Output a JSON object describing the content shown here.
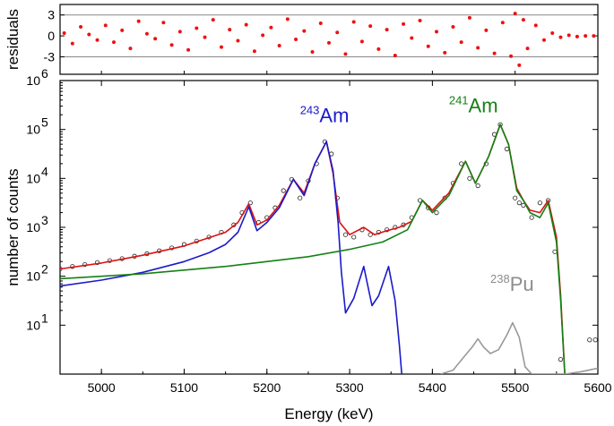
{
  "chart_data": [
    {
      "type": "scatter",
      "panel": "residuals",
      "ylabel": "residuals",
      "xlim": [
        4950,
        5600
      ],
      "ylim": [
        -5.5,
        4.5
      ],
      "yticks": [
        -3,
        0,
        3
      ],
      "ytick_labels": [
        "-3",
        "0",
        "3"
      ],
      "reference_lines": [
        -3,
        3
      ],
      "grid": false,
      "series": [
        {
          "marker_color": "#ee1111",
          "x": [
            4955,
            4965,
            4975,
            4985,
            4995,
            5005,
            5015,
            5025,
            5035,
            5045,
            5055,
            5065,
            5075,
            5085,
            5095,
            5105,
            5115,
            5125,
            5135,
            5145,
            5155,
            5165,
            5175,
            5185,
            5195,
            5205,
            5215,
            5225,
            5235,
            5245,
            5255,
            5265,
            5275,
            5285,
            5295,
            5305,
            5315,
            5325,
            5335,
            5345,
            5355,
            5365,
            5375,
            5385,
            5395,
            5405,
            5415,
            5425,
            5435,
            5445,
            5455,
            5465,
            5475,
            5485,
            5495,
            5500,
            5505,
            5510,
            5515,
            5525,
            5535,
            5545,
            5555,
            5565,
            5575,
            5585,
            5595
          ],
          "y": [
            0.4,
            -1.1,
            1.3,
            0.2,
            -0.6,
            1.5,
            -0.9,
            0.8,
            -1.8,
            2.1,
            0.3,
            -0.4,
            1.9,
            -1.3,
            0.6,
            -2.0,
            1.1,
            -0.2,
            2.3,
            -1.6,
            0.9,
            -0.7,
            1.6,
            -2.2,
            0.1,
            1.2,
            -1.4,
            2.4,
            -0.5,
            0.7,
            -2.3,
            1.8,
            -1.0,
            0.5,
            -2.6,
            2.0,
            -0.8,
            1.4,
            -1.9,
            0.9,
            -2.8,
            1.7,
            -0.3,
            2.2,
            -1.5,
            0.6,
            -2.4,
            1.3,
            -0.9,
            2.6,
            -1.7,
            0.8,
            -2.5,
            1.9,
            -2.9,
            3.2,
            -4.2,
            2.3,
            -1.8,
            1.5,
            -0.6,
            0.4,
            -0.2,
            0.1,
            -0.1,
            0.0,
            0.0
          ]
        }
      ]
    },
    {
      "type": "line",
      "panel": "spectrum",
      "xlabel": "Energy (keV)",
      "ylabel": "number of counts",
      "xlim": [
        4950,
        5600
      ],
      "ylim_log10": [
        0,
        6
      ],
      "yscale": "log",
      "xticks": [
        5000,
        5100,
        5200,
        5300,
        5400,
        5500,
        5600
      ],
      "xtick_labels": [
        "5000",
        "5100",
        "5200",
        "5300",
        "5400",
        "5500",
        "5600"
      ],
      "ytick_exponents": [
        1,
        2,
        3,
        4,
        5,
        6
      ],
      "ytick_base": "10",
      "grid": false,
      "annotations": [
        {
          "sup": "243",
          "text": "Am",
          "color": "#1a1acc",
          "x": 5240,
          "log10y": 5.15
        },
        {
          "sup": "241",
          "text": "Am",
          "color": "#148014",
          "x": 5420,
          "log10y": 5.35
        },
        {
          "sup": "238",
          "text": "Pu",
          "color": "#8c8c8c",
          "x": 5470,
          "log10y": 1.7
        }
      ],
      "series": [
        {
          "name": "",
          "role": "data points",
          "color": "#222222",
          "marker": "open-circle",
          "x": [
            4950,
            4965,
            4980,
            4995,
            5010,
            5025,
            5040,
            5055,
            5070,
            5085,
            5100,
            5115,
            5130,
            5145,
            5160,
            5170,
            5180,
            5190,
            5200,
            5210,
            5220,
            5230,
            5240,
            5250,
            5260,
            5270,
            5278,
            5285,
            5295,
            5305,
            5315,
            5325,
            5335,
            5345,
            5355,
            5365,
            5375,
            5385,
            5395,
            5405,
            5415,
            5425,
            5435,
            5445,
            5455,
            5465,
            5475,
            5482,
            5490,
            5500,
            5505,
            5510,
            5520,
            5530,
            5540,
            5548,
            5555,
            5590,
            5597
          ],
          "log10y": [
            2.15,
            2.2,
            2.24,
            2.28,
            2.32,
            2.36,
            2.41,
            2.46,
            2.52,
            2.58,
            2.65,
            2.72,
            2.8,
            2.9,
            3.05,
            3.3,
            3.5,
            3.1,
            3.2,
            3.4,
            3.75,
            3.98,
            3.6,
            3.95,
            4.3,
            4.75,
            4.5,
            3.6,
            2.85,
            2.8,
            2.95,
            2.85,
            2.9,
            2.95,
            3.0,
            3.05,
            3.2,
            3.55,
            3.4,
            3.3,
            3.6,
            3.9,
            4.3,
            4.0,
            3.85,
            4.3,
            4.9,
            5.1,
            4.6,
            3.6,
            3.5,
            3.45,
            3.2,
            3.5,
            3.55,
            2.5,
            0.3,
            0.7,
            0.7
          ]
        },
        {
          "name": "",
          "role": "total fit",
          "color": "#dd1111",
          "x": [
            4950,
            5000,
            5050,
            5100,
            5150,
            5165,
            5178,
            5188,
            5200,
            5215,
            5232,
            5245,
            5258,
            5272,
            5280,
            5288,
            5300,
            5317,
            5330,
            5345,
            5360,
            5375,
            5388,
            5400,
            5420,
            5440,
            5452,
            5468,
            5482,
            5492,
            5502,
            5510,
            5518,
            5530,
            5540,
            5550,
            5555,
            5560
          ],
          "log10y": [
            2.15,
            2.27,
            2.43,
            2.62,
            2.9,
            3.1,
            3.48,
            3.05,
            3.15,
            3.45,
            3.98,
            3.7,
            4.3,
            4.75,
            4.1,
            3.1,
            2.85,
            3.0,
            2.85,
            2.93,
            3.0,
            3.12,
            3.55,
            3.35,
            3.7,
            4.35,
            3.9,
            4.45,
            5.1,
            4.7,
            3.8,
            3.55,
            3.35,
            3.3,
            3.55,
            2.8,
            1.6,
            0.0
          ]
        },
        {
          "name": "",
          "role": "243Am component",
          "color": "#1a1acc",
          "x": [
            4950,
            5000,
            5050,
            5100,
            5130,
            5150,
            5165,
            5178,
            5188,
            5200,
            5215,
            5232,
            5245,
            5258,
            5272,
            5280,
            5286,
            5290,
            5295,
            5305,
            5317,
            5327,
            5335,
            5347,
            5355,
            5360,
            5363
          ],
          "log10y": [
            1.8,
            1.92,
            2.08,
            2.3,
            2.48,
            2.65,
            2.9,
            3.42,
            2.93,
            3.1,
            3.4,
            3.98,
            3.65,
            4.3,
            4.75,
            4.15,
            3.1,
            2.1,
            1.25,
            1.55,
            2.2,
            1.4,
            1.6,
            2.2,
            1.5,
            0.6,
            0.0
          ]
        },
        {
          "name": "",
          "role": "241Am component",
          "color": "#148014",
          "x": [
            4950,
            5050,
            5150,
            5250,
            5300,
            5340,
            5370,
            5388,
            5400,
            5420,
            5440,
            5452,
            5468,
            5482,
            5492,
            5502,
            5510,
            5518,
            5530,
            5540,
            5550,
            5555,
            5560
          ],
          "log10y": [
            1.95,
            2.05,
            2.2,
            2.4,
            2.55,
            2.7,
            2.95,
            3.55,
            3.3,
            3.65,
            4.35,
            3.9,
            4.45,
            5.1,
            4.7,
            3.75,
            3.55,
            3.3,
            3.2,
            3.5,
            2.7,
            1.5,
            0.0
          ]
        },
        {
          "name": "",
          "role": "238Pu component",
          "color": "#999999",
          "x": [
            5410,
            5425,
            5438,
            5448,
            5455,
            5462,
            5470,
            5480,
            5490,
            5497,
            5505,
            5512,
            5520,
            5530,
            5560,
            5580,
            5600
          ],
          "log10y": [
            0.0,
            0.08,
            0.35,
            0.55,
            0.72,
            0.55,
            0.42,
            0.5,
            0.8,
            1.05,
            0.75,
            0.15,
            0.0,
            0.0,
            0.0,
            0.05,
            0.12
          ]
        }
      ]
    }
  ]
}
